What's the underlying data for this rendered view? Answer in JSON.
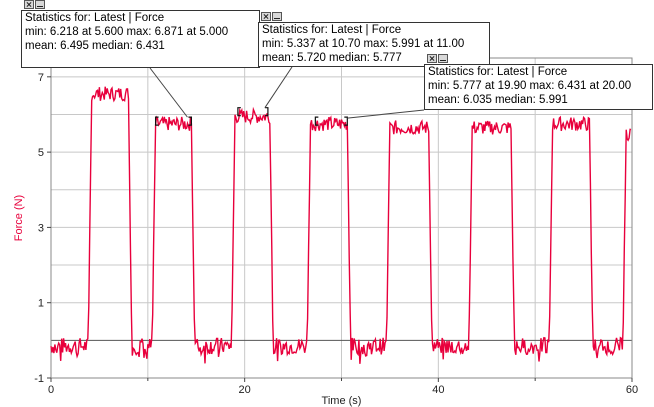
{
  "chart_data": {
    "type": "line",
    "xlabel": "Time (s)",
    "ylabel": "Force (N)",
    "xlim": [
      0,
      60
    ],
    "ylim": [
      -1,
      7.5
    ],
    "x_ticks": [
      0,
      20,
      40,
      60
    ],
    "y_ticks": [
      -1,
      1,
      3,
      5,
      7
    ],
    "grid": true,
    "series": [
      {
        "color": "#e8003c",
        "pulses": [
          {
            "t_start": 4.2,
            "t_end": 8.0,
            "high": 6.55
          },
          {
            "t_start": 10.8,
            "t_end": 14.5,
            "high": 5.75
          },
          {
            "t_start": 19.0,
            "t_end": 22.6,
            "high": 5.95
          },
          {
            "t_start": 26.8,
            "t_end": 30.6,
            "high": 5.75
          },
          {
            "t_start": 35.0,
            "t_end": 39.0,
            "high": 5.65
          },
          {
            "t_start": 43.5,
            "t_end": 47.5,
            "high": 5.65
          },
          {
            "t_start": 51.8,
            "t_end": 55.6,
            "high": 5.75
          },
          {
            "t_start": 59.4,
            "t_end": 60.0,
            "high": 5.5
          }
        ],
        "baseline": -0.15
      }
    ],
    "selections": [
      {
        "x_start": 10.8,
        "x_end": 14.5,
        "y": 5.85
      },
      {
        "x_start": 19.3,
        "x_end": 22.4,
        "y": 6.1
      },
      {
        "x_start": 27.3,
        "x_end": 30.6,
        "y": 5.85
      }
    ],
    "stats_boxes": [
      {
        "title": "Statistics for: Latest | Force",
        "min": "min: 6.218 at 5.600",
        "max": "max: 6.871 at 5.000",
        "mean": "mean: 6.495",
        "median": "median: 6.431"
      },
      {
        "title": "Statistics for: Latest | Force",
        "min": "min: 5.337 at 10.70",
        "max": "max: 5.991 at 11.00",
        "mean": "mean: 5.720",
        "median": "median: 5.777"
      },
      {
        "title": "Statistics for: Latest | Force",
        "min": "min: 5.777 at 19.90",
        "max": "max: 6.431 at 20.00",
        "mean": "mean: 6.035",
        "median": "median: 5.991"
      }
    ]
  },
  "colors": {
    "trace": "#e8003c",
    "ylabel": "#e8003c",
    "grid": "#c8c8c8",
    "zero_line": "#555555"
  }
}
